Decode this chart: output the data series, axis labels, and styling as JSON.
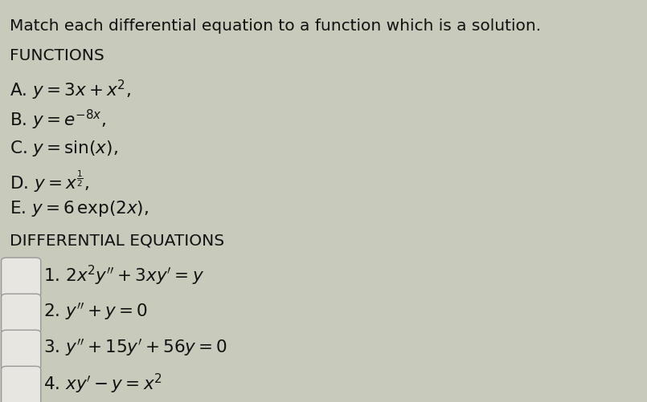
{
  "background_color": "#c8cabb",
  "title_text": "Match each differential equation to a function which is a solution.",
  "functions_header": "FUNCTIONS",
  "functions": [
    "A. $y = 3x + x^2$,",
    "B. $y = e^{-8x}$,",
    "C. $y = \\sin(x)$,",
    "D. $y = x^{\\frac{1}{2}}$,",
    "E. $y = 6\\,\\mathrm{exp}(2x)$,"
  ],
  "de_header": "DIFFERENTIAL EQUATIONS",
  "equations": [
    "1. $2x^2y'' + 3xy' = y$",
    "2. $y'' + y = 0$",
    "3. $y'' + 15y' + 56y = 0$",
    "4. $xy' - y = x^2$"
  ],
  "text_color": "#111111",
  "box_facecolor": "#e8e6e0",
  "box_edgecolor": "#999999",
  "title_fontsize": 14.5,
  "header_fontsize": 14.5,
  "item_fontsize": 15.5,
  "eq_fontsize": 15.5,
  "fig_width": 8.05,
  "fig_height": 5.01,
  "dpi": 100
}
